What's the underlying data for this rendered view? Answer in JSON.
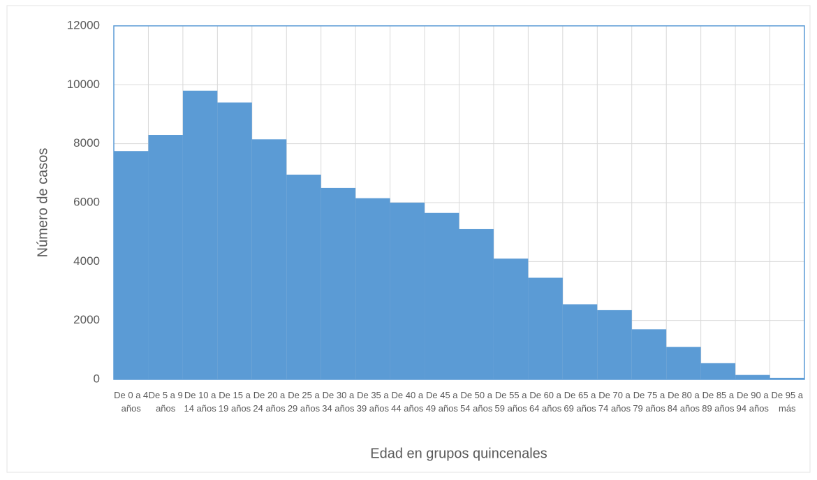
{
  "chart_data": {
    "type": "bar",
    "x_label": "Edad en grupos quincenales",
    "y_label": "Número de casos",
    "categories": [
      "De 0 a 4 años",
      "De 5 a 9 años",
      "De 10 a 14 años",
      "De 15 a 19 años",
      "De 20 a 24 años",
      "De 25 a 29 años",
      "De 30 a 34 años",
      "De 35 a 39 años",
      "De 40 a 44 años",
      "De 45 a 49 años",
      "De 50 a 54 años",
      "De 55 a 59 años",
      "De 60 a 64 años",
      "De 65 a 69 años",
      "De 70 a 74 años",
      "De 75 a 79 años",
      "De 80 a 84 años",
      "De 85 a 89 años",
      "De 90 a 94 años",
      "De 95 a más"
    ],
    "values": [
      7750,
      8300,
      9800,
      9400,
      8150,
      6950,
      6500,
      6150,
      6000,
      5650,
      5100,
      4100,
      3450,
      2550,
      2350,
      1700,
      1100,
      550,
      150,
      50
    ],
    "color": "#5b9bd5",
    "ylim": [
      0,
      12000
    ],
    "yticks": [
      0,
      2000,
      4000,
      6000,
      8000,
      10000,
      12000
    ],
    "grid": true
  }
}
